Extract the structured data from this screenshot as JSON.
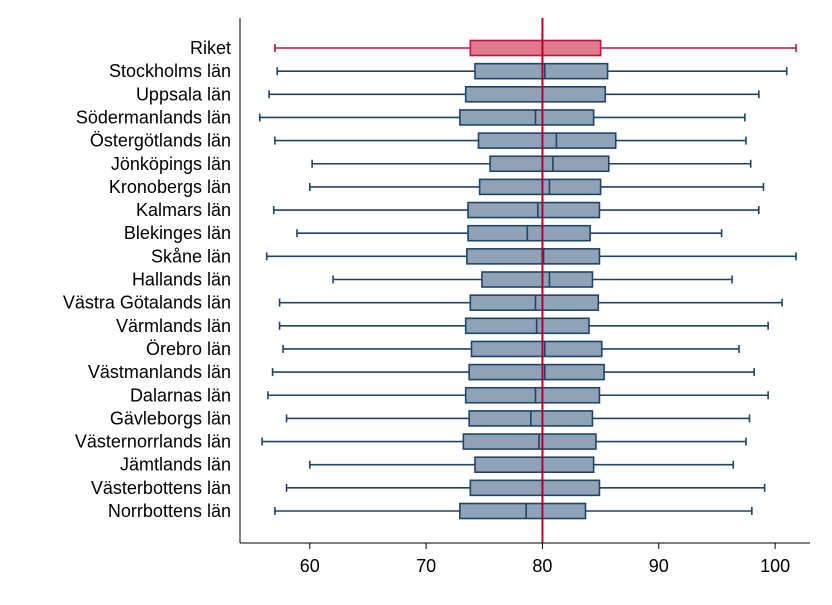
{
  "chart_data": {
    "type": "boxplot",
    "orientation": "horizontal",
    "categories": [
      "Riket",
      "Stockholms län",
      "Uppsala län",
      "Södermanlands län",
      "Östergötlands län",
      "Jönköpings län",
      "Kronobergs län",
      "Kalmars län",
      "Blekinges län",
      "Skåne län",
      "Hallands län",
      "Västra Götalands län",
      "Värmlands län",
      "Örebro län",
      "Västmanlands län",
      "Dalarnas län",
      "Gävleborgs län",
      "Västernorrlands län",
      "Jämtlands län",
      "Västerbottens län",
      "Norrbottens län"
    ],
    "boxes": [
      {
        "min": 57.0,
        "q1": 73.8,
        "median": 80.0,
        "q3": 85.0,
        "max": 101.8
      },
      {
        "min": 57.2,
        "q1": 74.2,
        "median": 80.2,
        "q3": 85.6,
        "max": 101.0
      },
      {
        "min": 56.5,
        "q1": 73.4,
        "median": 80.0,
        "q3": 85.4,
        "max": 98.6
      },
      {
        "min": 55.7,
        "q1": 72.9,
        "median": 79.4,
        "q3": 84.4,
        "max": 97.4
      },
      {
        "min": 57.0,
        "q1": 74.5,
        "median": 81.2,
        "q3": 86.3,
        "max": 97.5
      },
      {
        "min": 60.2,
        "q1": 75.5,
        "median": 80.9,
        "q3": 85.7,
        "max": 97.9
      },
      {
        "min": 60.0,
        "q1": 74.6,
        "median": 80.6,
        "q3": 85.0,
        "max": 99.0
      },
      {
        "min": 56.9,
        "q1": 73.6,
        "median": 79.6,
        "q3": 84.9,
        "max": 98.6
      },
      {
        "min": 58.9,
        "q1": 73.6,
        "median": 78.7,
        "q3": 84.1,
        "max": 95.4
      },
      {
        "min": 56.3,
        "q1": 73.5,
        "median": 80.1,
        "q3": 84.9,
        "max": 101.8
      },
      {
        "min": 62.0,
        "q1": 74.8,
        "median": 80.6,
        "q3": 84.3,
        "max": 96.3
      },
      {
        "min": 57.4,
        "q1": 73.8,
        "median": 79.4,
        "q3": 84.8,
        "max": 100.6
      },
      {
        "min": 57.4,
        "q1": 73.4,
        "median": 79.5,
        "q3": 84.0,
        "max": 99.4
      },
      {
        "min": 57.7,
        "q1": 73.9,
        "median": 80.2,
        "q3": 85.1,
        "max": 96.9
      },
      {
        "min": 56.8,
        "q1": 73.7,
        "median": 80.2,
        "q3": 85.3,
        "max": 98.2
      },
      {
        "min": 56.4,
        "q1": 73.4,
        "median": 79.4,
        "q3": 84.9,
        "max": 99.4
      },
      {
        "min": 58.0,
        "q1": 73.7,
        "median": 79.0,
        "q3": 84.3,
        "max": 97.8
      },
      {
        "min": 55.9,
        "q1": 73.2,
        "median": 79.7,
        "q3": 84.6,
        "max": 97.5
      },
      {
        "min": 60.0,
        "q1": 74.2,
        "median": 80.0,
        "q3": 84.4,
        "max": 96.4
      },
      {
        "min": 58.0,
        "q1": 73.8,
        "median": 80.0,
        "q3": 84.9,
        "max": 99.1
      },
      {
        "min": 57.0,
        "q1": 72.9,
        "median": 78.6,
        "q3": 83.7,
        "max": 98.0
      }
    ],
    "highlight_category": "Riket",
    "reference_line": 80,
    "x_ticks": [
      60,
      70,
      80,
      90,
      100
    ],
    "xlim": [
      54.0,
      103.0
    ],
    "xlabel": "",
    "ylabel": "",
    "title": "",
    "grid": false,
    "colors": {
      "box_fill": "#8fa3b8",
      "box_stroke": "#1f4466",
      "highlight_fill": "#e07a8e",
      "highlight_stroke": "#c4103e",
      "reference_line": "#b5002f"
    }
  }
}
